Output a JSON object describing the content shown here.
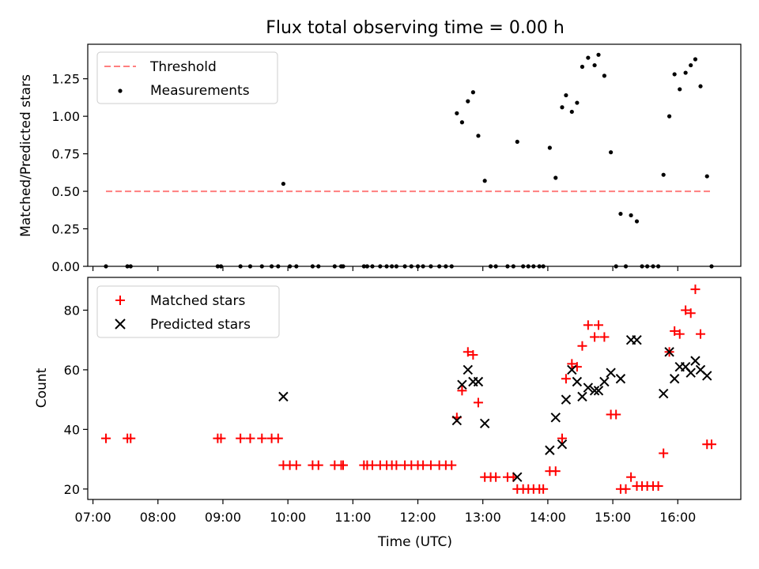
{
  "chart_data": [
    {
      "type": "scatter",
      "title": "Flux total observing time = 0.00 h",
      "xlabel": "",
      "ylabel": "Matched/Predicted stars",
      "xlim": [
        6.92,
        16.97
      ],
      "ylim": [
        0.0,
        1.48
      ],
      "yticks": [
        "0.00",
        "0.25",
        "0.50",
        "0.75",
        "1.00",
        "1.25"
      ],
      "ytick_values": [
        0.0,
        0.25,
        0.5,
        0.75,
        1.0,
        1.25
      ],
      "threshold": {
        "name": "Threshold",
        "x_range": [
          7.2,
          16.5
        ],
        "y": 0.5,
        "color": "#ff7f7f"
      },
      "legend": {
        "placement": "top-left",
        "entries": [
          "Threshold",
          "Measurements"
        ]
      },
      "series": [
        {
          "name": "Measurements",
          "color": "#000000",
          "x": [
            7.2,
            7.53,
            7.58,
            8.92,
            8.97,
            9.27,
            9.42,
            9.6,
            9.75,
            9.85,
            9.93,
            10.03,
            10.13,
            10.38,
            10.47,
            10.72,
            10.82,
            10.85,
            11.17,
            11.22,
            11.3,
            11.42,
            11.52,
            11.6,
            11.67,
            11.8,
            11.9,
            12.0,
            12.08,
            12.2,
            12.33,
            12.43,
            12.52,
            12.6,
            12.68,
            12.77,
            12.85,
            12.93,
            13.03,
            13.12,
            13.2,
            13.38,
            13.47,
            13.53,
            13.62,
            13.7,
            13.78,
            13.87,
            13.93,
            14.03,
            14.12,
            14.22,
            14.28,
            14.37,
            14.45,
            14.53,
            14.62,
            14.72,
            14.78,
            14.87,
            14.97,
            15.05,
            15.12,
            15.2,
            15.28,
            15.37,
            15.45,
            15.53,
            15.62,
            15.7,
            15.78,
            15.87,
            15.95,
            16.03,
            16.12,
            16.2,
            16.27,
            16.35,
            16.45,
            16.52
          ],
          "y": [
            0.0,
            0.0,
            0.0,
            0.0,
            0.0,
            0.0,
            0.0,
            0.0,
            0.0,
            0.0,
            0.55,
            0.0,
            0.0,
            0.0,
            0.0,
            0.0,
            0.0,
            0.0,
            0.0,
            0.0,
            0.0,
            0.0,
            0.0,
            0.0,
            0.0,
            0.0,
            0.0,
            0.0,
            0.0,
            0.0,
            0.0,
            0.0,
            0.0,
            1.02,
            0.96,
            1.1,
            1.16,
            0.87,
            0.57,
            0.0,
            0.0,
            0.0,
            0.0,
            0.83,
            0.0,
            0.0,
            0.0,
            0.0,
            0.0,
            0.79,
            0.59,
            1.06,
            1.14,
            1.03,
            1.09,
            1.33,
            1.39,
            1.34,
            1.41,
            1.27,
            0.76,
            0.0,
            0.35,
            0.0,
            0.34,
            0.3,
            0.0,
            0.0,
            0.0,
            0.0,
            0.61,
            1.0,
            1.28,
            1.18,
            1.29,
            1.34,
            1.38,
            1.2,
            0.6,
            0.0
          ]
        }
      ]
    },
    {
      "type": "scatter",
      "title": "",
      "xlabel": "Time (UTC)",
      "ylabel": "Count",
      "xlim": [
        6.92,
        16.97
      ],
      "ylim": [
        16.5,
        91.0
      ],
      "xticks": [
        "07:00",
        "08:00",
        "09:00",
        "10:00",
        "11:00",
        "12:00",
        "13:00",
        "14:00",
        "15:00",
        "16:00"
      ],
      "xtick_values": [
        7,
        8,
        9,
        10,
        11,
        12,
        13,
        14,
        15,
        16
      ],
      "yticks": [
        "20",
        "40",
        "60",
        "80"
      ],
      "ytick_values": [
        20,
        40,
        60,
        80
      ],
      "legend": {
        "placement": "top-left",
        "entries": [
          "Matched stars",
          "Predicted stars"
        ]
      },
      "series": [
        {
          "name": "Matched stars",
          "marker": "plus",
          "color": "#ff0000",
          "x": [
            7.2,
            7.53,
            7.58,
            8.92,
            8.97,
            9.27,
            9.42,
            9.6,
            9.75,
            9.85,
            9.93,
            10.03,
            10.13,
            10.38,
            10.47,
            10.72,
            10.82,
            10.85,
            11.17,
            11.22,
            11.3,
            11.42,
            11.52,
            11.6,
            11.67,
            11.8,
            11.9,
            12.0,
            12.08,
            12.2,
            12.33,
            12.43,
            12.52,
            12.6,
            12.68,
            12.77,
            12.85,
            12.93,
            13.03,
            13.12,
            13.2,
            13.38,
            13.47,
            13.53,
            13.62,
            13.7,
            13.78,
            13.87,
            13.93,
            14.03,
            14.12,
            14.22,
            14.28,
            14.37,
            14.45,
            14.53,
            14.62,
            14.72,
            14.78,
            14.87,
            14.97,
            15.05,
            15.12,
            15.2,
            15.28,
            15.37,
            15.45,
            15.53,
            15.62,
            15.7,
            15.78,
            15.87,
            15.95,
            16.03,
            16.12,
            16.2,
            16.27,
            16.35,
            16.45,
            16.52
          ],
          "y": [
            37,
            37,
            37,
            37,
            37,
            37,
            37,
            37,
            37,
            37,
            28,
            28,
            28,
            28,
            28,
            28,
            28,
            28,
            28,
            28,
            28,
            28,
            28,
            28,
            28,
            28,
            28,
            28,
            28,
            28,
            28,
            28,
            28,
            44,
            53,
            66,
            65,
            49,
            24,
            24,
            24,
            24,
            24,
            20,
            20,
            20,
            20,
            20,
            20,
            26,
            26,
            37,
            57,
            62,
            61,
            68,
            75,
            71,
            75,
            71,
            45,
            45,
            20,
            20,
            24,
            21,
            21,
            21,
            21,
            21,
            32,
            66,
            73,
            72,
            80,
            79,
            87,
            72,
            35,
            35
          ]
        },
        {
          "name": "Predicted stars",
          "marker": "x",
          "color": "#000000",
          "x": [
            9.93,
            12.6,
            12.68,
            12.77,
            12.85,
            12.93,
            13.03,
            13.53,
            14.03,
            14.12,
            14.22,
            14.28,
            14.37,
            14.45,
            14.53,
            14.62,
            14.72,
            14.78,
            14.87,
            14.97,
            15.12,
            15.28,
            15.37,
            15.78,
            15.87,
            15.95,
            16.03,
            16.12,
            16.2,
            16.27,
            16.35,
            16.45
          ],
          "y": [
            51,
            43,
            55,
            60,
            56,
            56,
            42,
            24,
            33,
            44,
            35,
            50,
            60,
            56,
            51,
            54,
            53,
            53,
            56,
            59,
            57,
            70,
            70,
            52,
            66,
            57,
            61,
            61,
            59,
            63,
            60,
            58
          ]
        }
      ]
    }
  ]
}
